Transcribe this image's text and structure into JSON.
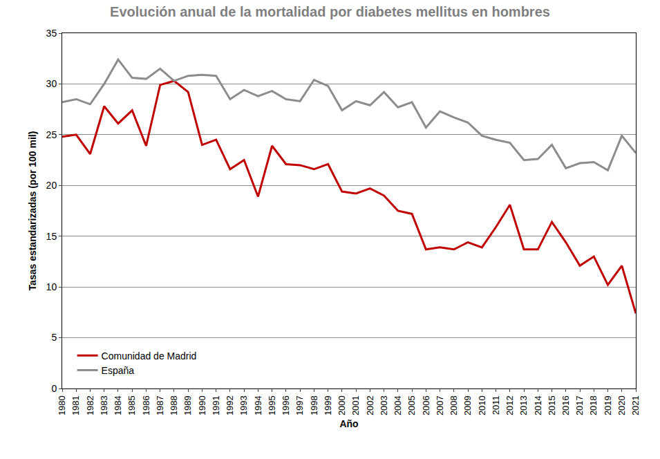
{
  "chart_data": {
    "type": "line",
    "title": "Evolución anual de la mortalidad por diabetes mellitus en hombres",
    "x_label": "Año",
    "y_label": "Tasas estandarizadas (por 100 mil)",
    "x": [
      1980,
      1981,
      1982,
      1983,
      1984,
      1985,
      1986,
      1987,
      1988,
      1989,
      1990,
      1991,
      1992,
      1993,
      1994,
      1995,
      1996,
      1997,
      1998,
      1999,
      2000,
      2001,
      2002,
      2003,
      2004,
      2005,
      2006,
      2007,
      2008,
      2009,
      2010,
      2011,
      2012,
      2013,
      2014,
      2015,
      2016,
      2017,
      2018,
      2019,
      2020,
      2021
    ],
    "series": [
      {
        "name": "Comunidad de Madrid",
        "color": "#c00000",
        "values": [
          24.8,
          25.0,
          23.1,
          27.8,
          26.1,
          27.4,
          23.9,
          29.9,
          30.3,
          29.2,
          24.0,
          24.5,
          21.6,
          22.5,
          18.9,
          23.9,
          22.1,
          22.0,
          21.6,
          22.1,
          19.4,
          19.2,
          19.7,
          19.0,
          17.5,
          17.2,
          13.7,
          13.9,
          13.7,
          14.4,
          13.9,
          15.9,
          18.1,
          13.7,
          13.7,
          16.4,
          14.4,
          12.1,
          13.0,
          10.2,
          12.1,
          7.4
        ]
      },
      {
        "name": "España",
        "color": "#8c8c8c",
        "values": [
          28.2,
          28.5,
          28.0,
          30.0,
          32.4,
          30.6,
          30.5,
          31.5,
          30.3,
          30.8,
          30.9,
          30.8,
          28.5,
          29.4,
          28.8,
          29.3,
          28.5,
          28.3,
          30.4,
          29.8,
          27.4,
          28.3,
          27.9,
          29.2,
          27.7,
          28.2,
          25.7,
          27.3,
          26.7,
          26.2,
          24.9,
          24.5,
          24.2,
          22.5,
          22.6,
          24.0,
          21.7,
          22.2,
          22.3,
          21.5,
          24.9,
          23.2
        ]
      }
    ],
    "xlim": [
      1980,
      2021
    ],
    "xticks": [
      1980,
      1981,
      1982,
      1983,
      1984,
      1985,
      1986,
      1987,
      1988,
      1989,
      1990,
      1991,
      1992,
      1993,
      1994,
      1995,
      1996,
      1997,
      1998,
      1999,
      2000,
      2001,
      2002,
      2003,
      2004,
      2005,
      2006,
      2007,
      2008,
      2009,
      2010,
      2011,
      2012,
      2013,
      2014,
      2015,
      2016,
      2017,
      2018,
      2019,
      2020,
      2021
    ],
    "ylim": [
      0,
      35
    ],
    "yticks": [
      0,
      5,
      10,
      15,
      20,
      25,
      30,
      35
    ],
    "grid": true,
    "legend": "lower left"
  }
}
